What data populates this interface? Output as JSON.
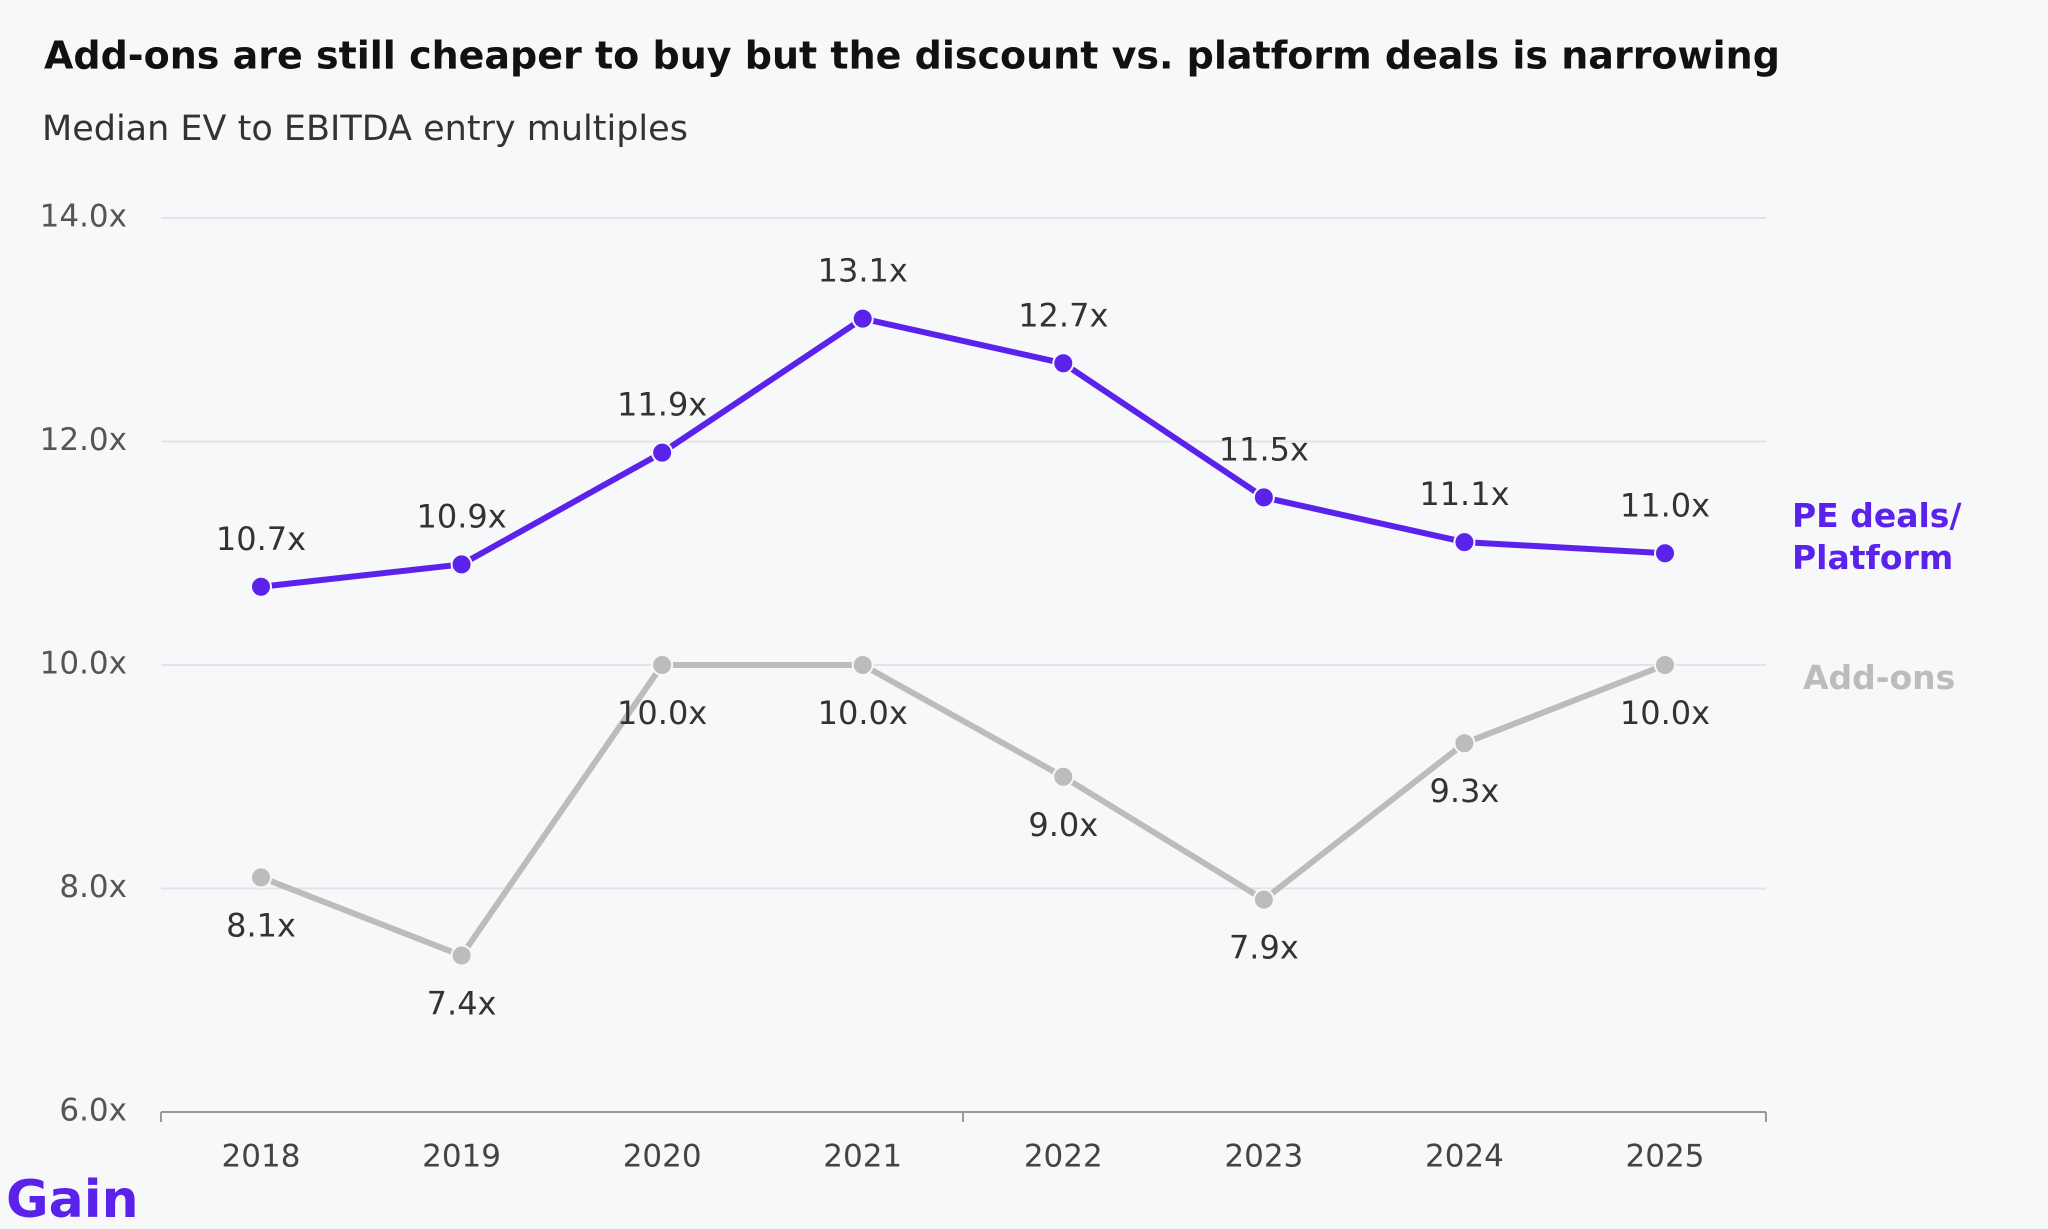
{
  "chart_data": {
    "type": "line",
    "title": "Add-ons are still cheaper to buy but the discount vs. platform deals is narrowing",
    "subtitle": "Median EV to EBITDA entry multiples",
    "categories": [
      "2018",
      "2019",
      "2020",
      "2021",
      "2022",
      "2023",
      "2024",
      "2025"
    ],
    "series": [
      {
        "name": "PE deals/ Platform",
        "color": "#5b22ec",
        "values": [
          10.7,
          10.9,
          11.9,
          13.1,
          12.7,
          11.5,
          11.1,
          11.0
        ],
        "value_labels": [
          "10.7x",
          "10.9x",
          "11.9x",
          "13.1x",
          "12.7x",
          "11.5x",
          "11.1x",
          "11.0x"
        ]
      },
      {
        "name": "Add-ons",
        "color": "#bcbcbc",
        "values": [
          8.1,
          7.4,
          10.0,
          10.0,
          9.0,
          7.9,
          9.3,
          10.0
        ],
        "value_labels": [
          "8.1x",
          "7.4x",
          "10.0x",
          "10.0x",
          "9.0x",
          "7.9x",
          "9.3x",
          "10.0x"
        ]
      }
    ],
    "ylim": [
      6,
      14
    ],
    "yticks": [
      {
        "value": 6,
        "label": "6.0x"
      },
      {
        "value": 8,
        "label": "8.0x"
      },
      {
        "value": 10,
        "label": "10.0x"
      },
      {
        "value": 12,
        "label": "12.0x"
      },
      {
        "value": 14,
        "label": "14.0x"
      }
    ],
    "grid": true,
    "logo": "Gain"
  }
}
